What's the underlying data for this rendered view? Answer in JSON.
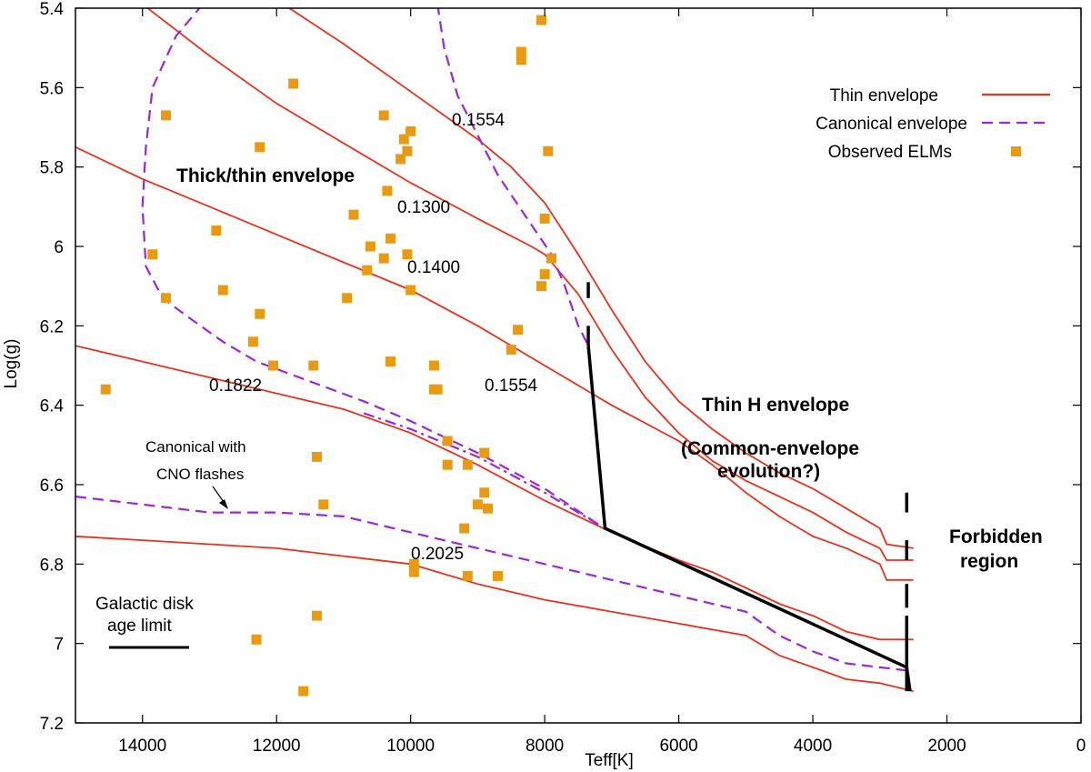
{
  "chart_data": {
    "type": "line",
    "xlabel": "Teff[K]",
    "ylabel": "Log(g)",
    "xlim": [
      15000,
      0
    ],
    "ylim": [
      5.4,
      7.2
    ],
    "y_inverted": true,
    "x_ticks": [
      14000,
      12000,
      10000,
      8000,
      6000,
      4000,
      2000,
      0
    ],
    "y_ticks": [
      5.4,
      5.6,
      5.8,
      6,
      6.2,
      6.4,
      6.6,
      6.8,
      7,
      7.2
    ],
    "x_tick_labels": [
      "14000",
      "12000",
      "10000",
      "8000",
      "6000",
      "4000",
      "2000",
      "0"
    ],
    "y_tick_labels": [
      "5.4",
      "5.6",
      "5.8",
      "6",
      "6.2",
      "6.4",
      "6.6",
      "6.8",
      "7",
      "7.2"
    ],
    "legend_position": "top-right",
    "legend": [
      {
        "label": "Thin envelope",
        "color": "#e8321e",
        "style": "solid"
      },
      {
        "label": "Canonical envelope",
        "color": "#9b27d8",
        "style": "dashed"
      },
      {
        "label": "Observed ELMs",
        "color": "#e89b12",
        "style": "square"
      }
    ],
    "thin_envelope_tracks": [
      {
        "points": [
          [
            14000,
            5.39
          ],
          [
            13000,
            5.52
          ],
          [
            12000,
            5.64
          ],
          [
            11000,
            5.74
          ],
          [
            10000,
            5.84
          ],
          [
            9000,
            5.93
          ],
          [
            8200,
            6.0
          ],
          [
            8000,
            6.02
          ],
          [
            7500,
            6.12
          ],
          [
            7000,
            6.26
          ],
          [
            6500,
            6.38
          ],
          [
            6000,
            6.47
          ],
          [
            5500,
            6.54
          ],
          [
            5000,
            6.59
          ],
          [
            4500,
            6.63
          ],
          [
            4000,
            6.67
          ],
          [
            3500,
            6.72
          ],
          [
            3000,
            6.76
          ],
          [
            2900,
            6.79
          ],
          [
            2500,
            6.79
          ]
        ]
      },
      {
        "points": [
          [
            11900,
            5.39
          ],
          [
            11000,
            5.49
          ],
          [
            10000,
            5.61
          ],
          [
            9000,
            5.73
          ],
          [
            8500,
            5.8
          ],
          [
            8000,
            5.89
          ],
          [
            7500,
            6.02
          ],
          [
            7000,
            6.16
          ],
          [
            6500,
            6.29
          ],
          [
            6000,
            6.39
          ],
          [
            5500,
            6.46
          ],
          [
            5000,
            6.52
          ],
          [
            4500,
            6.57
          ],
          [
            4000,
            6.61
          ],
          [
            3500,
            6.66
          ],
          [
            3000,
            6.71
          ],
          [
            2900,
            6.75
          ],
          [
            2500,
            6.76
          ]
        ]
      },
      {
        "points": [
          [
            15000,
            5.75
          ],
          [
            14000,
            5.83
          ],
          [
            13000,
            5.9
          ],
          [
            12000,
            5.97
          ],
          [
            11000,
            6.04
          ],
          [
            10000,
            6.11
          ],
          [
            9000,
            6.2
          ],
          [
            8000,
            6.3
          ],
          [
            7000,
            6.4
          ],
          [
            6000,
            6.49
          ],
          [
            5500,
            6.55
          ],
          [
            5000,
            6.62
          ],
          [
            4500,
            6.68
          ],
          [
            4000,
            6.73
          ],
          [
            3500,
            6.76
          ],
          [
            3000,
            6.8
          ],
          [
            2900,
            6.84
          ],
          [
            2500,
            6.84
          ]
        ]
      },
      {
        "points": [
          [
            15000,
            6.25
          ],
          [
            14000,
            6.29
          ],
          [
            13000,
            6.33
          ],
          [
            12000,
            6.37
          ],
          [
            11000,
            6.41
          ],
          [
            10000,
            6.47
          ],
          [
            9000,
            6.55
          ],
          [
            8000,
            6.64
          ],
          [
            7000,
            6.72
          ],
          [
            6000,
            6.79
          ],
          [
            5500,
            6.82
          ],
          [
            5000,
            6.86
          ],
          [
            4500,
            6.9
          ],
          [
            4000,
            6.93
          ],
          [
            3500,
            6.97
          ],
          [
            3000,
            6.99
          ],
          [
            2500,
            6.99
          ]
        ]
      },
      {
        "points": [
          [
            15000,
            6.73
          ],
          [
            14000,
            6.74
          ],
          [
            13000,
            6.75
          ],
          [
            12000,
            6.76
          ],
          [
            11000,
            6.78
          ],
          [
            10000,
            6.8
          ],
          [
            9000,
            6.85
          ],
          [
            8000,
            6.89
          ],
          [
            7000,
            6.92
          ],
          [
            6000,
            6.95
          ],
          [
            5000,
            6.98
          ],
          [
            4500,
            7.03
          ],
          [
            4000,
            7.06
          ],
          [
            3500,
            7.09
          ],
          [
            3000,
            7.1
          ],
          [
            2500,
            7.12
          ]
        ]
      }
    ],
    "canonical_tracks": [
      {
        "points": [
          [
            13100,
            5.39
          ],
          [
            13500,
            5.47
          ],
          [
            13850,
            5.6
          ],
          [
            13950,
            5.75
          ],
          [
            14000,
            5.9
          ],
          [
            13950,
            6.05
          ],
          [
            13700,
            6.13
          ],
          [
            13300,
            6.18
          ],
          [
            12800,
            6.24
          ],
          [
            12300,
            6.29
          ],
          [
            11500,
            6.34
          ],
          [
            10700,
            6.39
          ],
          [
            10000,
            6.44
          ],
          [
            9000,
            6.52
          ],
          [
            8000,
            6.61
          ],
          [
            7200,
            6.7
          ]
        ]
      },
      {
        "points": [
          [
            9600,
            5.39
          ],
          [
            9500,
            5.5
          ],
          [
            9300,
            5.62
          ],
          [
            9000,
            5.72
          ],
          [
            8700,
            5.82
          ],
          [
            8300,
            5.92
          ],
          [
            7900,
            6.02
          ],
          [
            7700,
            6.1
          ],
          [
            7500,
            6.2
          ],
          [
            7350,
            6.25
          ]
        ]
      },
      {
        "points": [
          [
            15000,
            6.63
          ],
          [
            14000,
            6.65
          ],
          [
            13000,
            6.67
          ],
          [
            12000,
            6.67
          ],
          [
            11000,
            6.68
          ],
          [
            10000,
            6.72
          ],
          [
            9000,
            6.76
          ],
          [
            8000,
            6.8
          ],
          [
            7000,
            6.84
          ],
          [
            6000,
            6.88
          ],
          [
            5000,
            6.92
          ],
          [
            4500,
            6.98
          ],
          [
            4000,
            7.02
          ],
          [
            3500,
            7.05
          ],
          [
            3000,
            7.06
          ],
          [
            2500,
            7.07
          ]
        ]
      },
      {
        "points": [
          [
            10700,
            6.42
          ],
          [
            10000,
            6.46
          ],
          [
            9000,
            6.53
          ],
          [
            8000,
            6.62
          ],
          [
            7200,
            6.7
          ]
        ]
      }
    ],
    "age_limit_line": [
      [
        7350,
        6.25
      ],
      [
        7100,
        6.71
      ],
      [
        2600,
        7.06
      ],
      [
        2550,
        7.12
      ]
    ],
    "forbidden_boundary": {
      "x": 2600,
      "y_ranges": [
        [
          6.62,
          6.67
        ],
        [
          6.74,
          6.79
        ],
        [
          6.85,
          6.91
        ],
        [
          6.93,
          7.12
        ]
      ]
    },
    "upper_boundary_marks": {
      "x": 7350,
      "y_ranges": [
        [
          6.09,
          6.13
        ],
        [
          6.2,
          6.25
        ]
      ]
    },
    "observed_elms": [
      [
        8050,
        5.43
      ],
      [
        8350,
        5.51
      ],
      [
        8350,
        5.53
      ],
      [
        11750,
        5.59
      ],
      [
        13650,
        5.67
      ],
      [
        10400,
        5.67
      ],
      [
        10000,
        5.71
      ],
      [
        10100,
        5.73
      ],
      [
        10050,
        5.76
      ],
      [
        12250,
        5.75
      ],
      [
        7950,
        5.76
      ],
      [
        10150,
        5.78
      ],
      [
        10350,
        5.86
      ],
      [
        10850,
        5.92
      ],
      [
        8000,
        5.93
      ],
      [
        12900,
        5.96
      ],
      [
        10300,
        5.98
      ],
      [
        10600,
        6.0
      ],
      [
        10050,
        6.02
      ],
      [
        13850,
        6.02
      ],
      [
        10400,
        6.03
      ],
      [
        7900,
        6.03
      ],
      [
        10650,
        6.06
      ],
      [
        8000,
        6.07
      ],
      [
        8050,
        6.1
      ],
      [
        12800,
        6.11
      ],
      [
        10000,
        6.11
      ],
      [
        10950,
        6.13
      ],
      [
        13650,
        6.13
      ],
      [
        12250,
        6.17
      ],
      [
        8400,
        6.21
      ],
      [
        12350,
        6.24
      ],
      [
        8500,
        6.26
      ],
      [
        10300,
        6.29
      ],
      [
        11450,
        6.3
      ],
      [
        12050,
        6.3
      ],
      [
        9650,
        6.3
      ],
      [
        14550,
        6.36
      ],
      [
        9650,
        6.36
      ],
      [
        9600,
        6.36
      ],
      [
        9450,
        6.49
      ],
      [
        8900,
        6.52
      ],
      [
        11400,
        6.53
      ],
      [
        9450,
        6.55
      ],
      [
        9150,
        6.55
      ],
      [
        8900,
        6.62
      ],
      [
        11300,
        6.65
      ],
      [
        9000,
        6.65
      ],
      [
        8850,
        6.66
      ],
      [
        9200,
        6.71
      ],
      [
        9950,
        6.8
      ],
      [
        9950,
        6.82
      ],
      [
        9150,
        6.83
      ],
      [
        8700,
        6.83
      ],
      [
        11400,
        6.93
      ],
      [
        12300,
        6.99
      ],
      [
        11600,
        7.12
      ]
    ]
  },
  "annotations": {
    "label_0_1554_top": "0.1554",
    "label_0_1300": "0.1300",
    "label_0_1400": "0.1400",
    "label_0_1554_mid": "0.1554",
    "label_0_1822": "0.1822",
    "label_0_2025": "0.2025",
    "thick_thin": "Thick/thin envelope",
    "thin_h_1": "Thin H envelope",
    "thin_h_2": "(Common-envelope",
    "thin_h_3": "evolution?)",
    "forbidden_1": "Forbidden",
    "forbidden_2": "region",
    "cno_1": "Canonical with",
    "cno_2": "CNO flashes",
    "age_1": "Galactic disk",
    "age_2": "age limit"
  },
  "colors": {
    "thin": "#e8321e",
    "canonical": "#9b27d8",
    "elm": "#e89b12",
    "axis": "#000000",
    "age_line": "#000000"
  }
}
